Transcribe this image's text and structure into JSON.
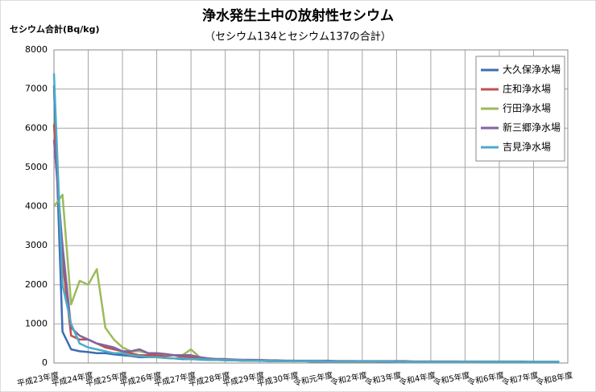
{
  "chart_data": {
    "type": "line",
    "title": "浄水発生土中の放射性セシウム",
    "subtitle": "（セシウム134とセシウム137の合計）",
    "y_label": "セシウム合計(Bq/kg)",
    "categories": [
      "平成23年度",
      null,
      null,
      null,
      "平成24年度",
      null,
      null,
      null,
      "平成25年度",
      null,
      null,
      null,
      "平成26年度",
      null,
      null,
      null,
      "平成27年度",
      null,
      null,
      null,
      "平成28年度",
      null,
      null,
      null,
      "平成29年度",
      null,
      null,
      null,
      "平成30年度",
      null,
      null,
      null,
      "令和元年度",
      null,
      null,
      null,
      "令和2年度",
      null,
      null,
      null,
      "令和3年度",
      null,
      null,
      null,
      "令和4年度",
      null,
      null,
      null,
      "令和5年度",
      null,
      null,
      null,
      "令和6年度",
      null,
      null,
      null,
      "令和7年度",
      null,
      null,
      null,
      "令和8年度"
    ],
    "series": [
      {
        "name": "大久保浄水場",
        "color": "#3d6db5",
        "values": [
          7100,
          800,
          350,
          300,
          280,
          250,
          250,
          220,
          200,
          180,
          150,
          150,
          150,
          130,
          120,
          100,
          100,
          90,
          80,
          80,
          70,
          70,
          60,
          60,
          60,
          50,
          50,
          50,
          50,
          50,
          40,
          40,
          40,
          40,
          40,
          40,
          40,
          40,
          30,
          30,
          30,
          30,
          30,
          30,
          30,
          30,
          30,
          30,
          30,
          30,
          20,
          20,
          20,
          20,
          20,
          20,
          20,
          20,
          20,
          20,
          null
        ]
      },
      {
        "name": "庄和浄水場",
        "color": "#c0504d",
        "values": [
          6100,
          2600,
          700,
          600,
          600,
          500,
          400,
          350,
          300,
          250,
          200,
          200,
          200,
          180,
          200,
          150,
          150,
          120,
          100,
          100,
          100,
          80,
          80,
          80,
          70,
          70,
          60,
          60,
          60,
          50,
          50,
          50,
          50,
          50,
          50,
          50,
          40,
          40,
          40,
          40,
          40,
          40,
          40,
          40,
          40,
          40,
          40,
          40,
          30,
          30,
          30,
          30,
          30,
          30,
          30,
          30,
          30,
          30,
          30,
          30,
          null
        ]
      },
      {
        "name": "行田浄水場",
        "color": "#9bbb59",
        "values": [
          4000,
          4300,
          1500,
          2100,
          2000,
          2400,
          900,
          600,
          400,
          300,
          300,
          250,
          250,
          220,
          200,
          200,
          350,
          150,
          120,
          100,
          100,
          80,
          80,
          70,
          70,
          60,
          60,
          60,
          50,
          50,
          50,
          50,
          50,
          40,
          40,
          40,
          40,
          40,
          40,
          40,
          30,
          30,
          30,
          30,
          30,
          30,
          30,
          30,
          30,
          30,
          30,
          30,
          30,
          30,
          30,
          30,
          30,
          30,
          30,
          30,
          null
        ]
      },
      {
        "name": "新三郷浄水場",
        "color": "#8064a2",
        "values": [
          5700,
          3000,
          900,
          700,
          600,
          500,
          450,
          400,
          300,
          300,
          350,
          250,
          250,
          230,
          200,
          200,
          200,
          150,
          120,
          100,
          100,
          90,
          80,
          80,
          80,
          70,
          70,
          60,
          60,
          60,
          60,
          60,
          60,
          50,
          50,
          50,
          50,
          50,
          50,
          50,
          50,
          50,
          40,
          40,
          40,
          40,
          40,
          40,
          40,
          40,
          40,
          40,
          40,
          40,
          40,
          40,
          30,
          30,
          30,
          30,
          null
        ]
      },
      {
        "name": "吉見浄水場",
        "color": "#4bacc6",
        "values": [
          7400,
          2000,
          1000,
          500,
          400,
          350,
          300,
          250,
          250,
          200,
          180,
          150,
          150,
          130,
          120,
          120,
          100,
          100,
          90,
          80,
          80,
          70,
          70,
          60,
          60,
          60,
          50,
          50,
          50,
          50,
          50,
          50,
          40,
          40,
          40,
          40,
          40,
          40,
          40,
          40,
          30,
          30,
          30,
          30,
          30,
          30,
          30,
          30,
          30,
          30,
          30,
          30,
          30,
          30,
          30,
          30,
          30,
          30,
          30,
          30,
          null
        ]
      }
    ],
    "ylim": [
      0,
      8000
    ],
    "yticks": [
      0,
      1000,
      2000,
      3000,
      4000,
      5000,
      6000,
      7000,
      8000
    ],
    "grid": true,
    "legend": "top-right"
  }
}
